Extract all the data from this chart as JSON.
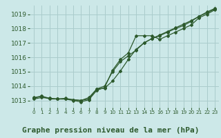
{
  "title": "Graphe pression niveau de la mer (hPa)",
  "bg_color": "#cce8e8",
  "grid_color": "#aacccc",
  "line_color": "#2d5a2d",
  "ylim": [
    1012.5,
    1019.6
  ],
  "xlim": [
    -0.5,
    23.5
  ],
  "yticks": [
    1013,
    1014,
    1015,
    1016,
    1017,
    1018,
    1019
  ],
  "xticks": [
    0,
    1,
    2,
    3,
    4,
    5,
    6,
    7,
    8,
    9,
    10,
    11,
    12,
    13,
    14,
    15,
    16,
    17,
    18,
    19,
    20,
    21,
    22,
    23
  ],
  "series1_x": [
    0,
    1,
    2,
    3,
    4,
    5,
    6,
    7,
    8,
    9,
    10,
    11,
    12,
    13,
    14,
    15,
    16,
    17,
    18,
    19,
    20,
    21,
    22,
    23
  ],
  "series1_y": [
    1013.2,
    1013.3,
    1013.15,
    1013.1,
    1013.15,
    1013.05,
    1013.0,
    1013.1,
    1013.8,
    1013.85,
    1014.35,
    1015.05,
    1015.85,
    1016.55,
    1017.0,
    1017.3,
    1017.55,
    1017.8,
    1018.05,
    1018.3,
    1018.55,
    1018.85,
    1019.15,
    1019.4
  ],
  "series2_x": [
    0,
    1,
    2,
    3,
    4,
    5,
    6,
    7,
    8,
    9,
    10,
    11,
    12,
    13,
    14,
    15,
    16,
    17,
    18,
    19,
    20,
    21,
    22,
    23
  ],
  "series2_y": [
    1013.15,
    1013.3,
    1013.1,
    1013.1,
    1013.1,
    1013.0,
    1012.9,
    1013.05,
    1013.7,
    1013.9,
    1015.1,
    1015.85,
    1016.3,
    1017.5,
    1017.5,
    1017.5,
    1017.25,
    1017.5,
    1017.75,
    1018.0,
    1018.25,
    1018.75,
    1019.0,
    1019.3
  ],
  "series3_x": [
    0,
    1,
    2,
    3,
    4,
    5,
    6,
    7,
    8,
    9,
    10,
    11,
    12,
    13,
    14,
    15,
    16,
    17,
    18,
    19,
    20,
    21,
    22,
    23
  ],
  "series3_y": [
    1013.1,
    1013.2,
    1013.15,
    1013.1,
    1013.1,
    1013.05,
    1013.0,
    1013.2,
    1013.8,
    1014.0,
    1015.0,
    1015.7,
    1016.1,
    1016.5,
    1017.0,
    1017.3,
    1017.5,
    1017.75,
    1018.0,
    1018.2,
    1018.5,
    1018.85,
    1019.1,
    1019.35
  ],
  "title_fontsize": 8,
  "tick_fontsize": 6.5,
  "xtick_fontsize": 5.2
}
